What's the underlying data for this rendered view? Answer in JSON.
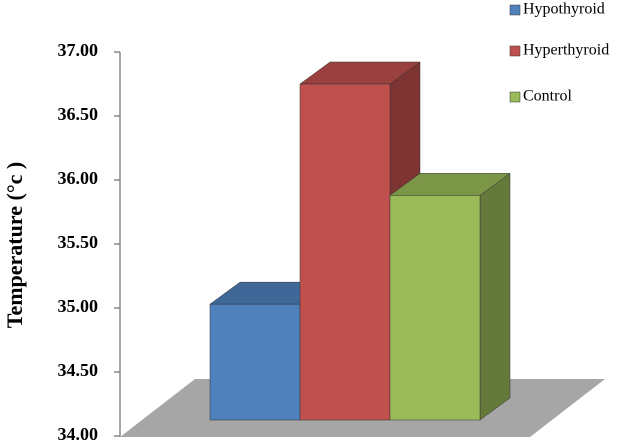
{
  "chart_data": {
    "type": "bar3d",
    "y_label": "Temperature (°c )",
    "series": [
      {
        "name": "Hypothyroid",
        "color": "#4f81bd",
        "values": [
          35.03
        ]
      },
      {
        "name": "Hyperthyroid",
        "color": "#c0504d",
        "values": [
          36.75
        ]
      },
      {
        "name": "Control",
        "color": "#9bbb59",
        "values": [
          35.88
        ]
      }
    ],
    "ylim": [
      34,
      37
    ],
    "yticks": [
      {
        "value": 34,
        "label": "34.00"
      },
      {
        "value": 34.5,
        "label": "34.50"
      },
      {
        "value": 35,
        "label": "35.00"
      },
      {
        "value": 35.5,
        "label": "35.50"
      },
      {
        "value": 36,
        "label": "36.00"
      },
      {
        "value": 36.5,
        "label": "36.50"
      },
      {
        "value": 37,
        "label": "37.00"
      }
    ],
    "legend": "top-right"
  }
}
